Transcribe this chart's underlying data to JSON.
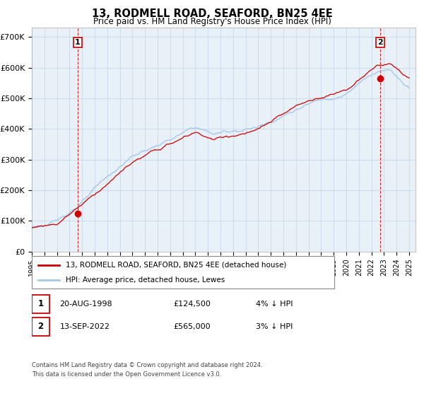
{
  "title": "13, RODMELL ROAD, SEAFORD, BN25 4EE",
  "subtitle": "Price paid vs. HM Land Registry's House Price Index (HPI)",
  "ylabel_ticks": [
    "£0",
    "£100K",
    "£200K",
    "£300K",
    "£400K",
    "£500K",
    "£600K",
    "£700K"
  ],
  "ylim": [
    0,
    730000
  ],
  "xlim_start": 1995.0,
  "xlim_end": 2025.5,
  "line_color_hpi": "#a8c8e8",
  "line_color_price": "#cc0000",
  "chart_bg": "#e8f0f8",
  "sale1_year": 1998.63,
  "sale1_price": 124500,
  "sale2_year": 2022.7,
  "sale2_price": 565000,
  "legend_line1": "13, RODMELL ROAD, SEAFORD, BN25 4EE (detached house)",
  "legend_line2": "HPI: Average price, detached house, Lewes",
  "table_row1": [
    "1",
    "20-AUG-1998",
    "£124,500",
    "4% ↓ HPI"
  ],
  "table_row2": [
    "2",
    "13-SEP-2022",
    "£565,000",
    "3% ↓ HPI"
  ],
  "footer1": "Contains HM Land Registry data © Crown copyright and database right 2024.",
  "footer2": "This data is licensed under the Open Government Licence v3.0.",
  "background_color": "#ffffff",
  "grid_color": "#c8d8e8"
}
